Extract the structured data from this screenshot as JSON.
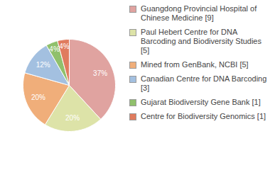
{
  "chart_data": {
    "type": "pie",
    "categories": [
      "Guangdong Provincial Hospital of Chinese Medicine [9]",
      "Paul Hebert Centre for DNA Barcoding and Biodiversity Studies [5]",
      "Mined from GenBank, NCBI [5]",
      "Canadian Centre for DNA Barcoding [3]",
      "Gujarat Biodiversity Gene Bank [1]",
      "Centre for Biodiversity Genomics [1]"
    ],
    "values": [
      37,
      20,
      20,
      12,
      4,
      4
    ],
    "value_labels": [
      "37%",
      "20%",
      "20%",
      "12%",
      "4%",
      "4%"
    ],
    "colors": [
      "#e0a3a0",
      "#dde3a8",
      "#f0ae7a",
      "#a3c0e0",
      "#90c06c",
      "#e07b5e"
    ],
    "legend": "right",
    "data_labels": true,
    "tick_labels": false
  }
}
